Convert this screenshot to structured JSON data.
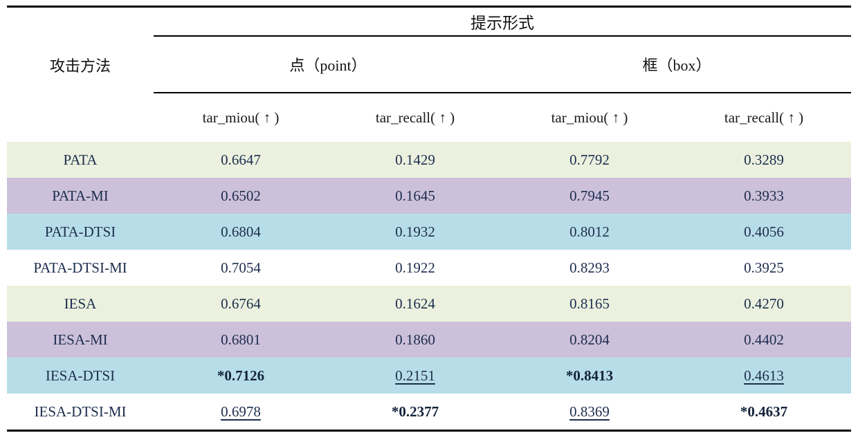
{
  "table": {
    "prompt_header": "提示形式",
    "attack_col": "攻击方法",
    "groups": {
      "point": "点（point）",
      "box": "框（box）"
    },
    "subheaders": [
      "tar_miou( ↑ )",
      "tar_recall( ↑ )",
      "tar_miou( ↑ )",
      "tar_recall( ↑ )"
    ],
    "row_colors": [
      "#ebf1de",
      "#ccc0da",
      "#b7dee8",
      "#ffffff"
    ],
    "rows": [
      {
        "method": "PATA",
        "cells": [
          {
            "text": "0.6647"
          },
          {
            "text": "0.1429"
          },
          {
            "text": "0.7792"
          },
          {
            "text": "0.3289"
          }
        ]
      },
      {
        "method": "PATA-MI",
        "cells": [
          {
            "text": "0.6502"
          },
          {
            "text": "0.1645"
          },
          {
            "text": "0.7945"
          },
          {
            "text": "0.3933"
          }
        ]
      },
      {
        "method": "PATA-DTSI",
        "cells": [
          {
            "text": "0.6804"
          },
          {
            "text": "0.1932"
          },
          {
            "text": "0.8012"
          },
          {
            "text": "0.4056"
          }
        ]
      },
      {
        "method": "PATA-DTSI-MI",
        "cells": [
          {
            "text": "0.7054"
          },
          {
            "text": "0.1922"
          },
          {
            "text": "0.8293"
          },
          {
            "text": "0.3925"
          }
        ]
      },
      {
        "method": "IESA",
        "cells": [
          {
            "text": "0.6764"
          },
          {
            "text": "0.1624"
          },
          {
            "text": "0.8165"
          },
          {
            "text": "0.4270"
          }
        ]
      },
      {
        "method": "IESA-MI",
        "cells": [
          {
            "text": "0.6801"
          },
          {
            "text": "0.1860"
          },
          {
            "text": "0.8204"
          },
          {
            "text": "0.4402"
          }
        ]
      },
      {
        "method": "IESA-DTSI",
        "cells": [
          {
            "text": "*0.7126",
            "emph": "bold"
          },
          {
            "text": "0.2151",
            "emph": "underline"
          },
          {
            "text": "*0.8413",
            "emph": "bold"
          },
          {
            "text": "0.4613",
            "emph": "underline"
          }
        ]
      },
      {
        "method": "IESA-DTSI-MI",
        "cells": [
          {
            "text": "0.6978",
            "emph": "underline"
          },
          {
            "text": "*0.2377",
            "emph": "bold"
          },
          {
            "text": "0.8369",
            "emph": "underline"
          },
          {
            "text": "*0.4637",
            "emph": "bold"
          }
        ]
      }
    ]
  }
}
